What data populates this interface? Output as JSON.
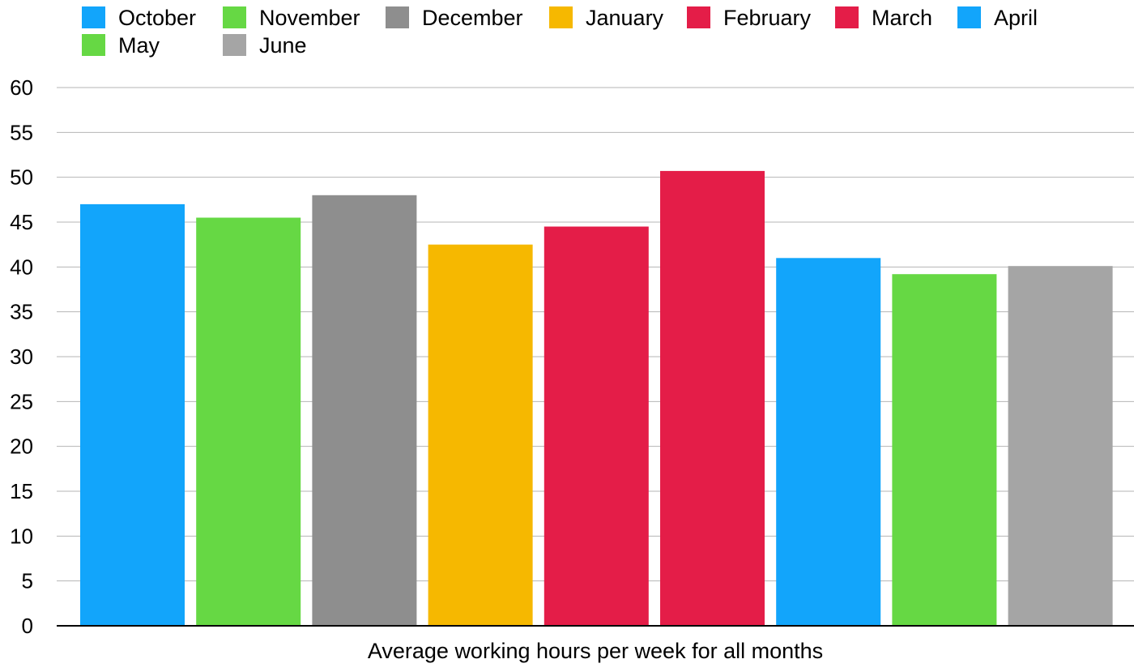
{
  "chart_data": {
    "type": "bar",
    "title": "",
    "xlabel": "Average working hours per week for all months",
    "ylabel": "",
    "ylim": [
      0,
      60
    ],
    "yticks": [
      0,
      5,
      10,
      15,
      20,
      25,
      30,
      35,
      40,
      45,
      50,
      55,
      60
    ],
    "grid": true,
    "legend_position": "top-left",
    "categories": [
      "Average working hours per week for all months"
    ],
    "series": [
      {
        "name": "October",
        "values": [
          47.0
        ],
        "color": "#12a5fb"
      },
      {
        "name": "November",
        "values": [
          45.5
        ],
        "color": "#66d844"
      },
      {
        "name": "December",
        "values": [
          48.0
        ],
        "color": "#8e8e8e"
      },
      {
        "name": "January",
        "values": [
          42.5
        ],
        "color": "#f6b800"
      },
      {
        "name": "February",
        "values": [
          44.5
        ],
        "color": "#e41d48"
      },
      {
        "name": "March",
        "values": [
          50.7
        ],
        "color": "#e41d48"
      },
      {
        "name": "April",
        "values": [
          41.0
        ],
        "color": "#12a5fb"
      },
      {
        "name": "May",
        "values": [
          39.2
        ],
        "color": "#66d844"
      },
      {
        "name": "June",
        "values": [
          40.1
        ],
        "color": "#a5a5a5"
      }
    ]
  }
}
